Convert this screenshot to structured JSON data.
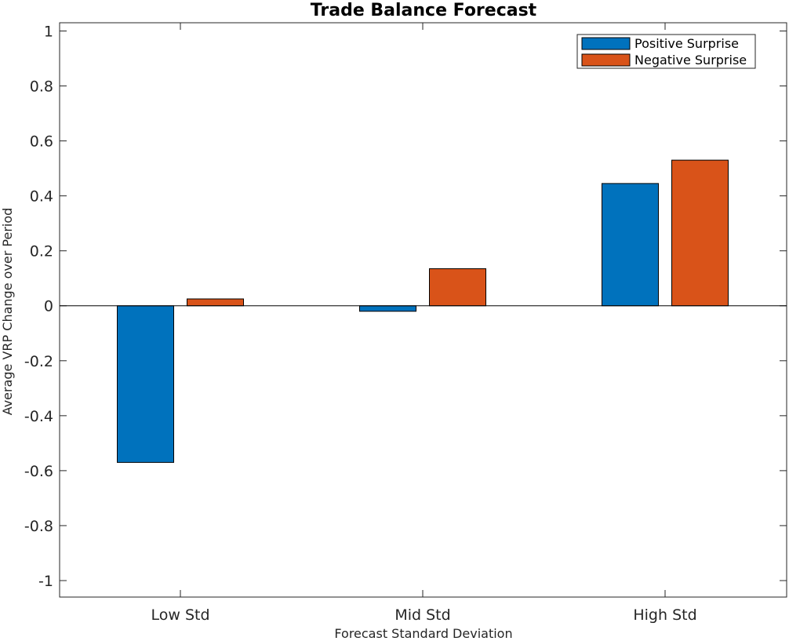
{
  "chart_data": {
    "type": "bar",
    "title": "Trade Balance Forecast",
    "xlabel": "Forecast Standard Deviation",
    "ylabel": "Average VRP Change over Period",
    "categories": [
      "Low Std",
      "Mid Std",
      "High Std"
    ],
    "series": [
      {
        "name": "Positive Surprise",
        "values": [
          -0.57,
          -0.02,
          0.445
        ],
        "color": "#0072BD"
      },
      {
        "name": "Negative Surprise",
        "values": [
          0.025,
          0.135,
          0.53
        ],
        "color": "#D95319"
      }
    ],
    "ylim": [
      -1.06,
      1.03
    ],
    "yticks": [
      1,
      0.8,
      0.6,
      0.4,
      0.2,
      0,
      -0.2,
      -0.4,
      -0.6,
      -0.8,
      -1
    ],
    "ytick_labels": [
      "1",
      "0.8",
      "0.6",
      "0.4",
      "0.2",
      "0",
      "-0.2",
      "-0.4",
      "-0.6",
      "-0.8",
      "-1"
    ],
    "legend_position": "top-right",
    "grid": false
  }
}
